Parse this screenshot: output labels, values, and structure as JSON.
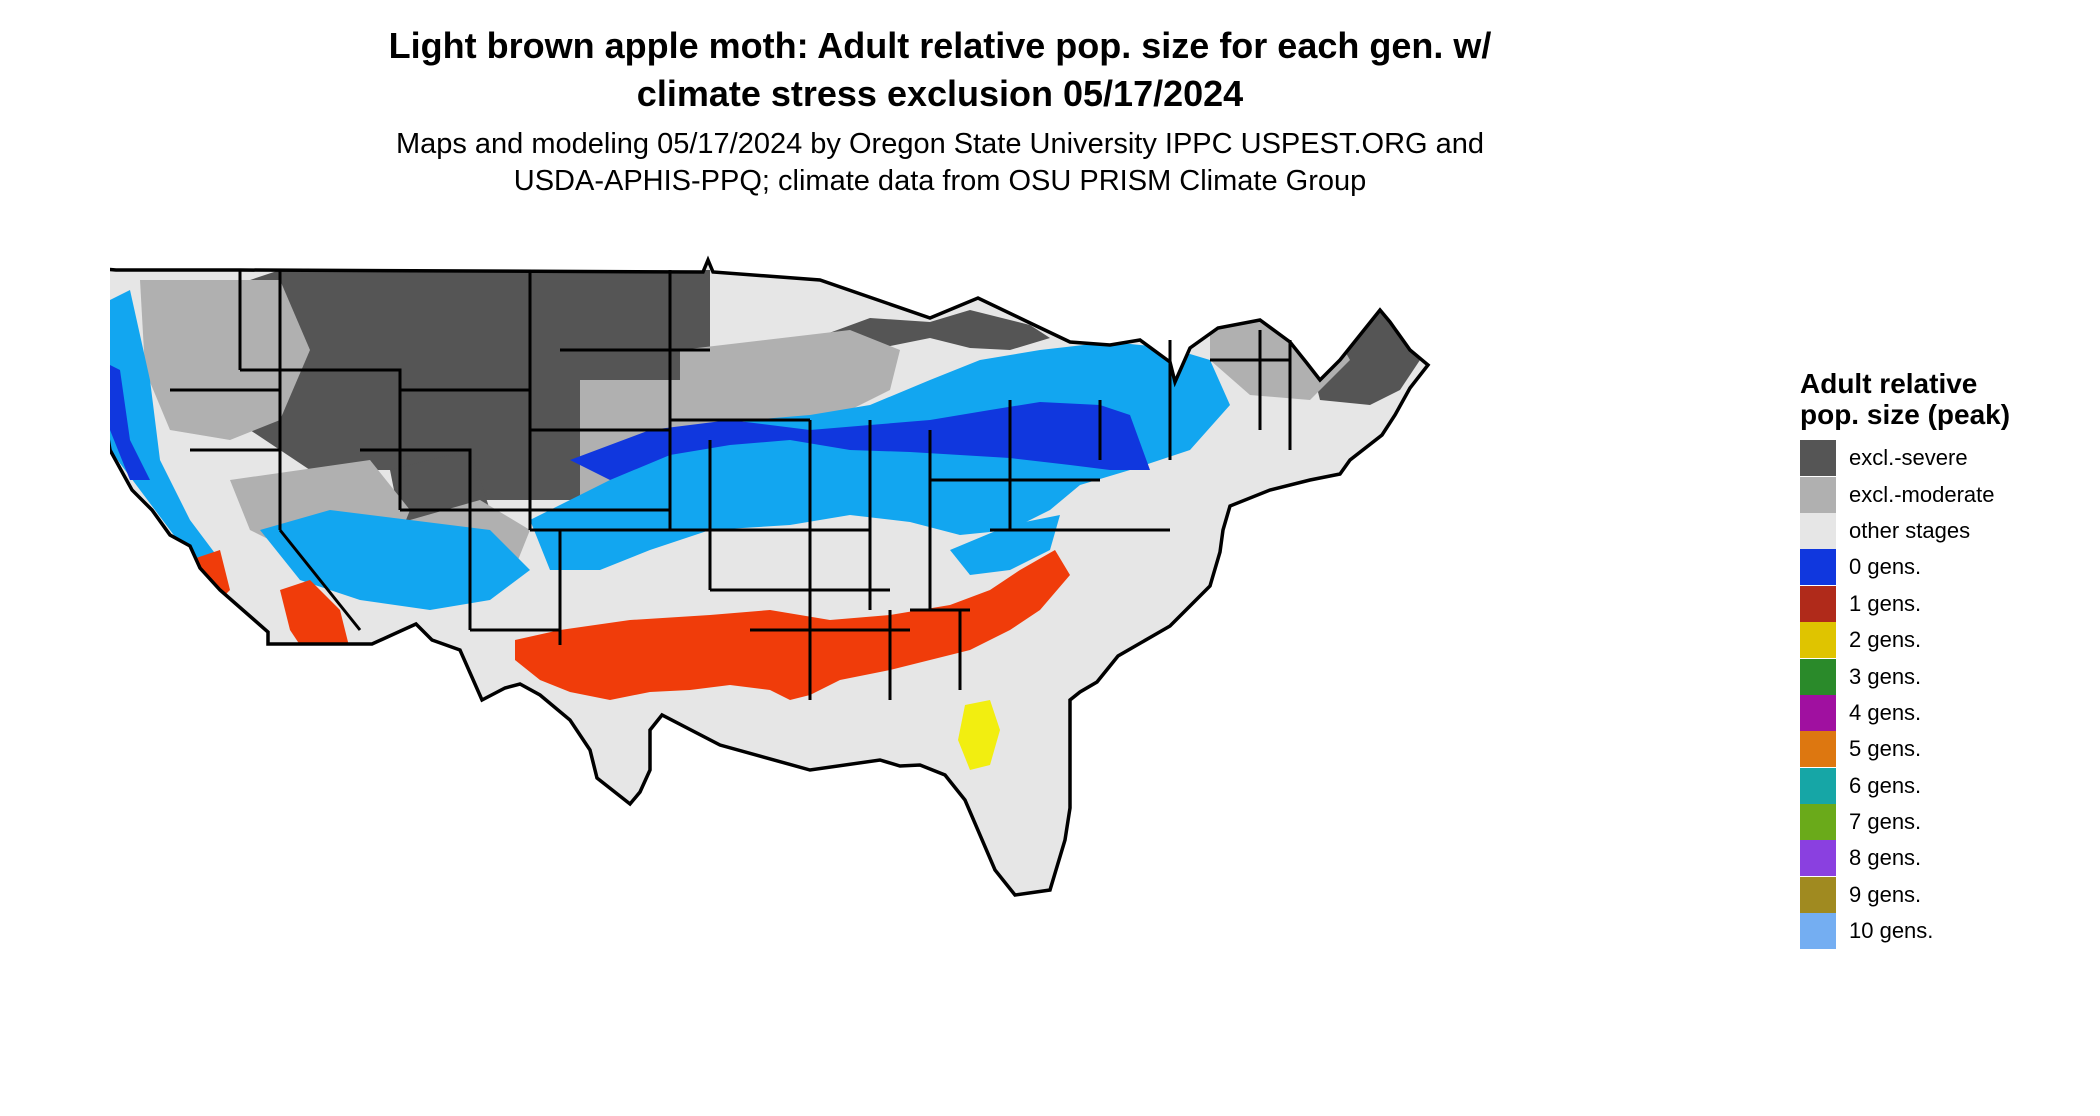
{
  "title_line1": "Light brown apple moth: Adult relative pop. size for each gen. w/",
  "title_line2": "climate stress exclusion 05/17/2024",
  "subtitle_line1": "Maps and modeling 05/17/2024 by Oregon State University IPPC USPEST.ORG and",
  "subtitle_line2": "USDA-APHIS-PPQ; climate data from OSU PRISM Climate Group",
  "legend": {
    "title": "Adult relative pop. size (peak)",
    "items": [
      {
        "label": "excl.-severe",
        "color": "#555555"
      },
      {
        "label": "excl.-moderate",
        "color": "#b0b0b0"
      },
      {
        "label": "other stages",
        "color": "#e6e6e6"
      },
      {
        "label": "0 gens.",
        "color": "#1037de"
      },
      {
        "label": "1 gens.",
        "color": "#b02a1a"
      },
      {
        "label": "2 gens.",
        "color": "#dfc400"
      },
      {
        "label": "3 gens.",
        "color": "#2a8a2a"
      },
      {
        "label": "4 gens.",
        "color": "#a010a0"
      },
      {
        "label": "5 gens.",
        "color": "#dd7710"
      },
      {
        "label": "6 gens.",
        "color": "#16a6a6"
      },
      {
        "label": "7 gens.",
        "color": "#6aaa1a"
      },
      {
        "label": "8 gens.",
        "color": "#8a40e0"
      },
      {
        "label": "9 gens.",
        "color": "#a08a20"
      },
      {
        "label": "10 gens.",
        "color": "#74aef2"
      }
    ]
  },
  "map_colors": {
    "severe": "#555555",
    "moderate": "#b0b0b0",
    "other": "#e6e6e6",
    "blue_dark": "#1037de",
    "blue_light": "#12a6f0",
    "orange_red": "#f03c0a",
    "dark_red": "#b02a1a",
    "yellow": "#f2ee10"
  }
}
